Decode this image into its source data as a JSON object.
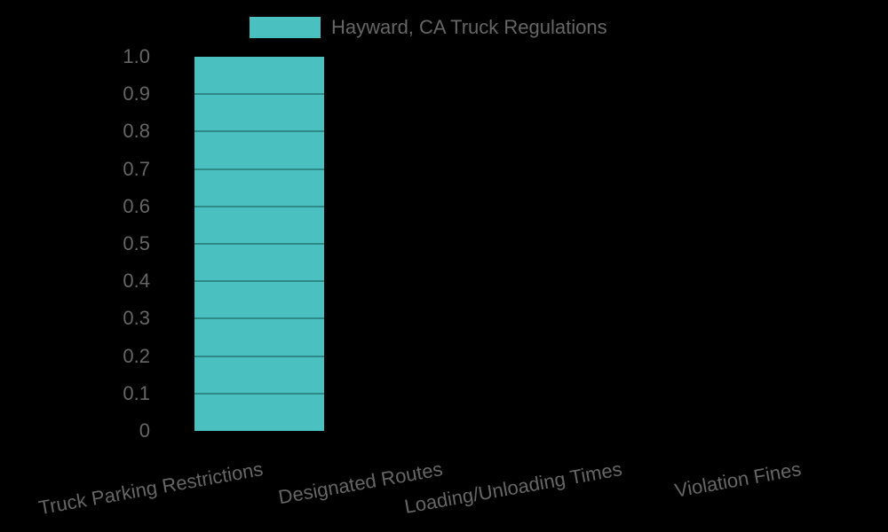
{
  "chart_data": {
    "type": "bar",
    "title": "",
    "xlabel": "",
    "ylabel": "",
    "categories": [
      "Truck Parking Restrictions",
      "Designated Routes",
      "Loading/Unloading Times",
      "Violation Fines"
    ],
    "series": [
      {
        "name": "Hayward, CA Truck Regulations",
        "values": [
          1,
          0,
          0,
          0
        ],
        "color": "#4BC0C0"
      }
    ],
    "ylim": [
      0,
      1.0
    ],
    "yticks": [
      "0",
      "0.1",
      "0.2",
      "0.3",
      "0.4",
      "0.5",
      "0.6",
      "0.7",
      "0.8",
      "0.9",
      "1.0"
    ],
    "grid": true,
    "gridline_color": "#2F8A87",
    "legend_position": "top",
    "background": "#000000",
    "text_color": "#666666"
  },
  "legend": {
    "label": "Hayward, CA Truck Regulations"
  }
}
